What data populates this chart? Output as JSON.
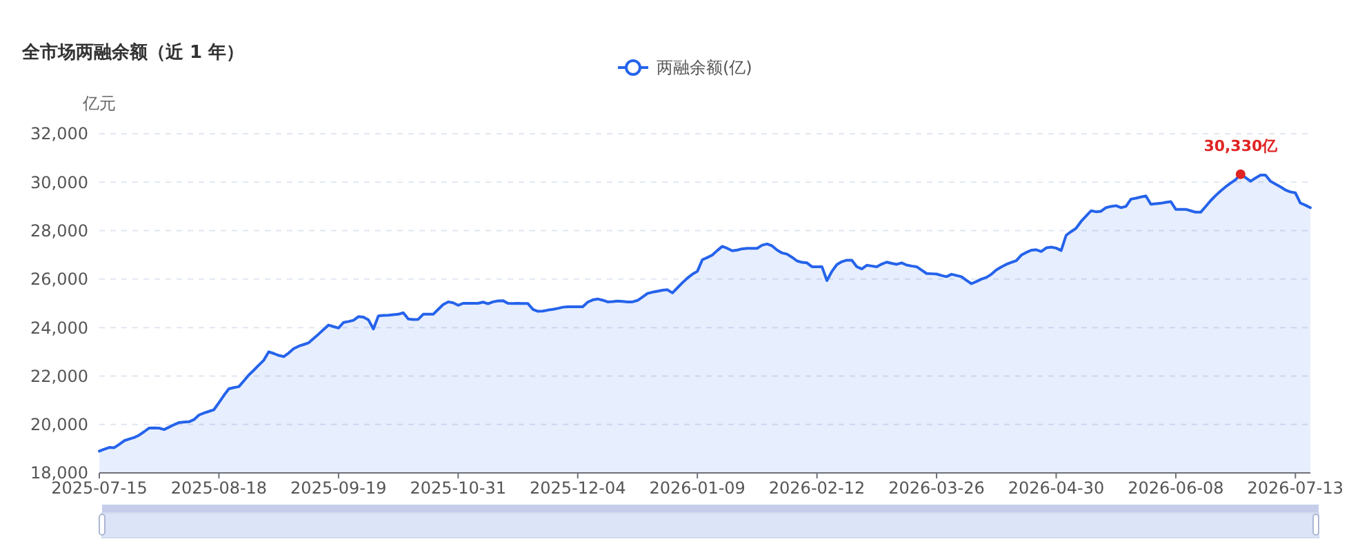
{
  "chart_data": {
    "type": "area",
    "title": "全市场两融余额（近 1 年）",
    "ylabel": "亿元",
    "categories": [
      "2025-07-15",
      null,
      null,
      null,
      null,
      null,
      null,
      null,
      null,
      null,
      null,
      null,
      null,
      null,
      null,
      null,
      null,
      null,
      null,
      null,
      null,
      null,
      null,
      null,
      "2025-08-18",
      null,
      null,
      null,
      null,
      null,
      null,
      null,
      null,
      null,
      null,
      null,
      null,
      null,
      null,
      null,
      null,
      null,
      null,
      null,
      null,
      null,
      null,
      null,
      "2025-09-19",
      null,
      null,
      null,
      null,
      null,
      null,
      null,
      null,
      null,
      null,
      null,
      null,
      null,
      null,
      null,
      null,
      null,
      null,
      null,
      null,
      null,
      null,
      null,
      "2025-10-31",
      null,
      null,
      null,
      null,
      null,
      null,
      null,
      null,
      null,
      null,
      null,
      null,
      null,
      null,
      null,
      null,
      null,
      null,
      null,
      null,
      null,
      null,
      null,
      "2025-12-04",
      null,
      null,
      null,
      null,
      null,
      null,
      null,
      null,
      null,
      null,
      null,
      null,
      null,
      null,
      null,
      null,
      null,
      null,
      null,
      null,
      null,
      null,
      null,
      "2026-01-09",
      null,
      null,
      null,
      null,
      null,
      null,
      null,
      null,
      null,
      null,
      null,
      null,
      null,
      null,
      null,
      null,
      null,
      null,
      null,
      null,
      null,
      null,
      null,
      "2026-02-12",
      null,
      null,
      null,
      null,
      null,
      null,
      null,
      null,
      null,
      null,
      null,
      null,
      null,
      null,
      null,
      null,
      null,
      null,
      null,
      null,
      null,
      null,
      null,
      "2026-03-26",
      null,
      null,
      null,
      null,
      null,
      null,
      null,
      null,
      null,
      null,
      null,
      null,
      null,
      null,
      null,
      null,
      null,
      null,
      null,
      null,
      null,
      null,
      null,
      "2026-04-30",
      null,
      null,
      null,
      null,
      null,
      null,
      null,
      null,
      null,
      null,
      null,
      null,
      null,
      null,
      null,
      null,
      null,
      null,
      null,
      null,
      null,
      null,
      null,
      "2026-06-08",
      null,
      null,
      null,
      null,
      null,
      null,
      null,
      null,
      null,
      null,
      null,
      null,
      null,
      null,
      null,
      null,
      null,
      null,
      null,
      null,
      null,
      null,
      null,
      "2026-07-13",
      null,
      null,
      null
    ],
    "series": [
      {
        "name": "两融余额(亿)",
        "color": "#2563eb",
        "values": [
          18900,
          18980,
          19050,
          19040,
          19180,
          19330,
          19400,
          19460,
          19560,
          19700,
          19850,
          19860,
          19850,
          19790,
          19890,
          19990,
          20080,
          20100,
          20110,
          20200,
          20390,
          20470,
          20540,
          20610,
          20900,
          21200,
          21470,
          21520,
          21560,
          21800,
          22040,
          22240,
          22450,
          22650,
          23000,
          22930,
          22850,
          22800,
          22950,
          23130,
          23230,
          23300,
          23370,
          23550,
          23730,
          23920,
          24100,
          24040,
          23980,
          24210,
          24250,
          24300,
          24450,
          24430,
          24320,
          23940,
          24480,
          24500,
          24510,
          24530,
          24550,
          24610,
          24350,
          24330,
          24340,
          24550,
          24550,
          24550,
          24750,
          24950,
          25060,
          25020,
          24920,
          25000,
          25000,
          25000,
          25000,
          25050,
          24980,
          25060,
          25100,
          25110,
          25000,
          24990,
          25000,
          24990,
          24990,
          24750,
          24670,
          24680,
          24720,
          24750,
          24790,
          24840,
          24860,
          24860,
          24860,
          24860,
          25050,
          25140,
          25180,
          25130,
          25060,
          25070,
          25090,
          25080,
          25060,
          25060,
          25120,
          25260,
          25410,
          25460,
          25500,
          25540,
          25560,
          25430,
          25640,
          25850,
          26040,
          26200,
          26320,
          26800,
          26890,
          26990,
          27180,
          27350,
          27270,
          27170,
          27200,
          27250,
          27270,
          27270,
          27270,
          27400,
          27450,
          27370,
          27200,
          27080,
          27030,
          26900,
          26750,
          26690,
          26670,
          26510,
          26510,
          26510,
          25940,
          26320,
          26600,
          26720,
          26780,
          26780,
          26510,
          26420,
          26570,
          26540,
          26510,
          26620,
          26700,
          26650,
          26610,
          26670,
          26580,
          26540,
          26510,
          26370,
          26230,
          26220,
          26210,
          26150,
          26100,
          26200,
          26150,
          26100,
          25950,
          25810,
          25900,
          26000,
          26070,
          26200,
          26380,
          26500,
          26610,
          26690,
          26760,
          26990,
          27100,
          27190,
          27210,
          27140,
          27290,
          27320,
          27280,
          27180,
          27810,
          27960,
          28100,
          28380,
          28600,
          28820,
          28780,
          28800,
          28950,
          29000,
          29030,
          28950,
          29000,
          29300,
          29340,
          29390,
          29430,
          29090,
          29110,
          29130,
          29170,
          29200,
          28880,
          28880,
          28880,
          28820,
          28760,
          28760,
          29000,
          29240,
          29450,
          29640,
          29810,
          29960,
          30100,
          30330,
          30190,
          30040,
          30170,
          30290,
          30290,
          30040,
          29920,
          29810,
          29680,
          29600,
          29560,
          29140,
          29050,
          28950
        ]
      }
    ],
    "ylim": [
      18000,
      32000
    ],
    "yticks": [
      {
        "value": 18000,
        "label": "18,000"
      },
      {
        "value": 20000,
        "label": "20,000"
      },
      {
        "value": 22000,
        "label": "22,000"
      },
      {
        "value": 24000,
        "label": "24,000"
      },
      {
        "value": 26000,
        "label": "26,000"
      },
      {
        "value": 28000,
        "label": "28,000"
      },
      {
        "value": 30000,
        "label": "30,000"
      },
      {
        "value": 32000,
        "label": "32,000"
      }
    ],
    "grid": "y",
    "legend": "top",
    "annotations": [
      {
        "text": "30,330亿",
        "y": 30330
      }
    ]
  }
}
